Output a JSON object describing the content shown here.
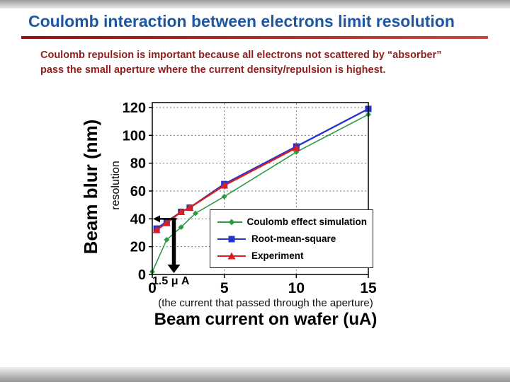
{
  "slide": {
    "title": "Coulomb interaction between electrons limit resolution",
    "body_line1": "Coulomb repulsion is important because all electrons not scattered by “absorber”",
    "body_line2": "pass the small aperture where the current density/repulsion is highest.",
    "aperture_note": "(the current that passed through the aperture)"
  },
  "colors": {
    "title_blue": "#1c57a6",
    "rule_red": "#8c1414",
    "body_red": "#8f1d1d",
    "simulation_green": "#2e9b44",
    "rms_blue": "#2633cc",
    "experiment_red": "#dd1f1f"
  },
  "chart_data": {
    "type": "line",
    "title": "",
    "xlabel": "Beam current on wafer (uA)",
    "ylabel": "Beam blur (nm)",
    "ylabel_secondary": "resolution",
    "xlim": [
      0,
      15
    ],
    "ylim": [
      0,
      120
    ],
    "xticks": [
      0,
      5,
      10,
      15
    ],
    "yticks": [
      0,
      20,
      40,
      60,
      80,
      100,
      120
    ],
    "grid": "dashed",
    "legend_position": "inside lower-right",
    "series": [
      {
        "name": "Coulomb effect simulation",
        "color": "#2e9b44",
        "marker": "diamond",
        "x": [
          0,
          1,
          2,
          3,
          5,
          10,
          15
        ],
        "y": [
          2,
          25,
          34,
          44,
          56,
          88,
          115
        ]
      },
      {
        "name": "Root-mean-square",
        "color": "#2633cc",
        "marker": "square",
        "x": [
          0.3,
          1,
          2,
          2.6,
          5,
          10,
          15
        ],
        "y": [
          33,
          38,
          45,
          48,
          65,
          92,
          119
        ]
      },
      {
        "name": "Experiment",
        "color": "#dd1f1f",
        "marker": "triangle",
        "x": [
          0.3,
          1,
          2,
          2.6,
          5,
          10
        ],
        "y": [
          32,
          37,
          45,
          48,
          64,
          91
        ]
      }
    ],
    "annotations": {
      "arrow_label": "1.5 μ A",
      "vertical_arrow": {
        "x": 1.5,
        "from_y": 40,
        "to_y": 0
      },
      "horizontal_arrow": {
        "y": 40,
        "from_x": 1.7,
        "to_x": 0.05
      }
    }
  }
}
